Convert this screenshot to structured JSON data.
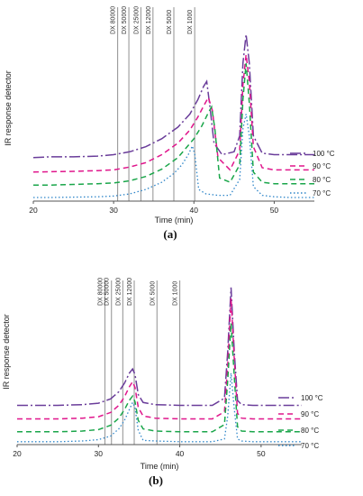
{
  "chart_data": [
    {
      "type": "line",
      "panel_label": "(a)",
      "xlabel": "Time (min)",
      "ylabel": "IR response detector",
      "xlim": [
        20,
        55
      ],
      "xticks": [
        20,
        30,
        40,
        50
      ],
      "grid": false,
      "legend_position": "right",
      "standards": [
        {
          "label": "DX 80000",
          "x": 30.5
        },
        {
          "label": "DX 50000",
          "x": 31.9
        },
        {
          "label": "DX 25000",
          "x": 33.4
        },
        {
          "label": "DX 12000",
          "x": 34.9
        },
        {
          "label": "DX 5000",
          "x": 37.5
        },
        {
          "label": "DX 1000",
          "x": 40.1
        }
      ],
      "series": [
        {
          "name": "100 °C",
          "color": "#6a3d9a",
          "dash": "dashdot",
          "x": [
            20,
            22,
            25,
            28,
            30,
            32,
            34,
            36,
            38,
            39.5,
            40.5,
            41.2,
            41.6,
            42.0,
            42.5,
            43.5,
            45,
            45.7,
            46.1,
            46.5,
            46.9,
            47.4,
            48.5,
            50,
            52,
            55
          ],
          "y": [
            6.0,
            6.1,
            6.1,
            6.2,
            6.4,
            6.8,
            7.5,
            8.6,
            10.2,
            12.0,
            14.0,
            15.8,
            16.5,
            13.0,
            8.0,
            6.4,
            6.8,
            9.0,
            19.0,
            23.0,
            19.0,
            9.0,
            6.6,
            6.4,
            6.4,
            6.4
          ]
        },
        {
          "name": "90 °C",
          "color": "#e0168c",
          "dash": "dash",
          "x": [
            20,
            22,
            25,
            28,
            30,
            32,
            34,
            36,
            38,
            39.5,
            40.5,
            41.3,
            41.8,
            42.3,
            43,
            44.5,
            45.7,
            46.1,
            46.5,
            46.9,
            47.4,
            48.5,
            50,
            52,
            55
          ],
          "y": [
            4.0,
            4.05,
            4.1,
            4.2,
            4.3,
            4.7,
            5.3,
            6.4,
            8.0,
            9.8,
            11.6,
            13.3,
            14.3,
            12.5,
            6.0,
            4.3,
            7.0,
            16.0,
            20.2,
            16.5,
            7.5,
            4.6,
            4.3,
            4.3,
            4.3
          ]
        },
        {
          "name": "80 °C",
          "color": "#1aa64a",
          "dash": "dash",
          "x": [
            20,
            22,
            25,
            28,
            30,
            32,
            34,
            36,
            38,
            40,
            41,
            41.8,
            42.2,
            42.6,
            43.2,
            44.5,
            45.7,
            46.1,
            46.5,
            46.9,
            47.4,
            48.5,
            50,
            52,
            55
          ],
          "y": [
            2.2,
            2.2,
            2.3,
            2.4,
            2.5,
            2.8,
            3.4,
            4.4,
            6.0,
            8.6,
            10.4,
            12.2,
            13.0,
            10.0,
            3.2,
            2.6,
            5.0,
            14.0,
            19.0,
            13.5,
            4.0,
            2.6,
            2.4,
            2.4,
            2.4
          ]
        },
        {
          "name": "70 °C",
          "color": "#2f86c9",
          "dash": "dot",
          "x": [
            20,
            22,
            25,
            28,
            30,
            32,
            34,
            36,
            37.5,
            38.5,
            39.3,
            39.8,
            40.1,
            40.6,
            41.5,
            43,
            44.5,
            45.7,
            46.1,
            46.5,
            46.9,
            47.4,
            48.5,
            50,
            52,
            55
          ],
          "y": [
            0.5,
            0.5,
            0.55,
            0.6,
            0.7,
            1.0,
            1.6,
            2.6,
            3.8,
            5.0,
            6.4,
            7.6,
            6.5,
            1.6,
            1.0,
            0.8,
            0.8,
            3.0,
            10.0,
            12.0,
            9.0,
            2.0,
            0.8,
            0.6,
            0.5,
            0.5
          ]
        }
      ]
    },
    {
      "type": "line",
      "panel_label": "(b)",
      "xlabel": "Time (min)",
      "ylabel": "IR response detector",
      "xlim": [
        20,
        55
      ],
      "xticks": [
        20,
        30,
        40,
        50
      ],
      "grid": false,
      "legend_position": "right",
      "standards": [
        {
          "label": "DX 80000",
          "x": 30.8
        },
        {
          "label": "DX 50000",
          "x": 31.6
        },
        {
          "label": "DX 25000",
          "x": 33.0
        },
        {
          "label": "DX 12000",
          "x": 34.4
        },
        {
          "label": "DX 5000",
          "x": 37.2
        },
        {
          "label": "DX 1000",
          "x": 40.0
        }
      ],
      "series": [
        {
          "name": "100 °C",
          "color": "#6a3d9a",
          "dash": "dashdot",
          "x": [
            20,
            25,
            28,
            30,
            31.5,
            32.5,
            33.2,
            33.8,
            34.2,
            34.5,
            34.9,
            35.5,
            37,
            40,
            44,
            45.5,
            45.9,
            46.3,
            46.7,
            47.1,
            47.6,
            49,
            52,
            55
          ],
          "y": [
            5.5,
            5.5,
            5.6,
            5.8,
            6.4,
            7.4,
            8.6,
            10.0,
            10.6,
            9.8,
            7.0,
            5.9,
            5.6,
            5.5,
            5.5,
            6.5,
            13.0,
            22.0,
            13.0,
            6.2,
            5.6,
            5.5,
            5.5,
            5.5
          ]
        },
        {
          "name": "90 °C",
          "color": "#e0168c",
          "dash": "dash",
          "x": [
            20,
            25,
            28,
            30,
            31.5,
            32.5,
            33.2,
            33.8,
            34.2,
            34.5,
            34.9,
            35.5,
            37,
            40,
            44,
            45.5,
            45.9,
            46.3,
            46.7,
            47.1,
            47.6,
            49,
            52,
            55
          ],
          "y": [
            3.6,
            3.6,
            3.7,
            3.9,
            4.5,
            5.5,
            6.7,
            8.1,
            8.8,
            8.0,
            5.2,
            4.0,
            3.7,
            3.6,
            3.6,
            4.6,
            11.0,
            20.5,
            12.0,
            4.4,
            3.7,
            3.6,
            3.6,
            3.6
          ]
        },
        {
          "name": "80 °C",
          "color": "#1aa64a",
          "dash": "dash",
          "x": [
            20,
            25,
            28,
            30,
            31.5,
            32.5,
            33.2,
            33.8,
            34.2,
            34.5,
            34.9,
            35.5,
            37,
            40,
            44,
            45.5,
            45.9,
            46.3,
            46.7,
            47.1,
            47.6,
            49,
            52,
            55
          ],
          "y": [
            1.8,
            1.8,
            1.9,
            2.1,
            2.7,
            3.7,
            4.9,
            6.2,
            6.8,
            6.0,
            3.4,
            2.2,
            1.9,
            1.8,
            1.8,
            2.8,
            9.0,
            17.0,
            9.5,
            2.5,
            1.9,
            1.8,
            1.8,
            1.8
          ]
        },
        {
          "name": "70 °C",
          "color": "#2f86c9",
          "dash": "dot",
          "x": [
            20,
            25,
            28,
            30,
            31.5,
            32.5,
            33.2,
            33.8,
            34.2,
            34.5,
            34.9,
            35.5,
            37,
            40,
            44,
            45.5,
            45.9,
            46.3,
            46.7,
            47.1,
            47.6,
            49,
            52,
            55
          ],
          "y": [
            0.4,
            0.4,
            0.5,
            0.7,
            1.2,
            2.2,
            3.4,
            4.9,
            5.9,
            5.2,
            2.0,
            0.6,
            0.5,
            0.4,
            0.4,
            0.8,
            4.0,
            10.0,
            5.0,
            0.8,
            0.5,
            0.4,
            0.4,
            0.4
          ]
        }
      ]
    }
  ]
}
